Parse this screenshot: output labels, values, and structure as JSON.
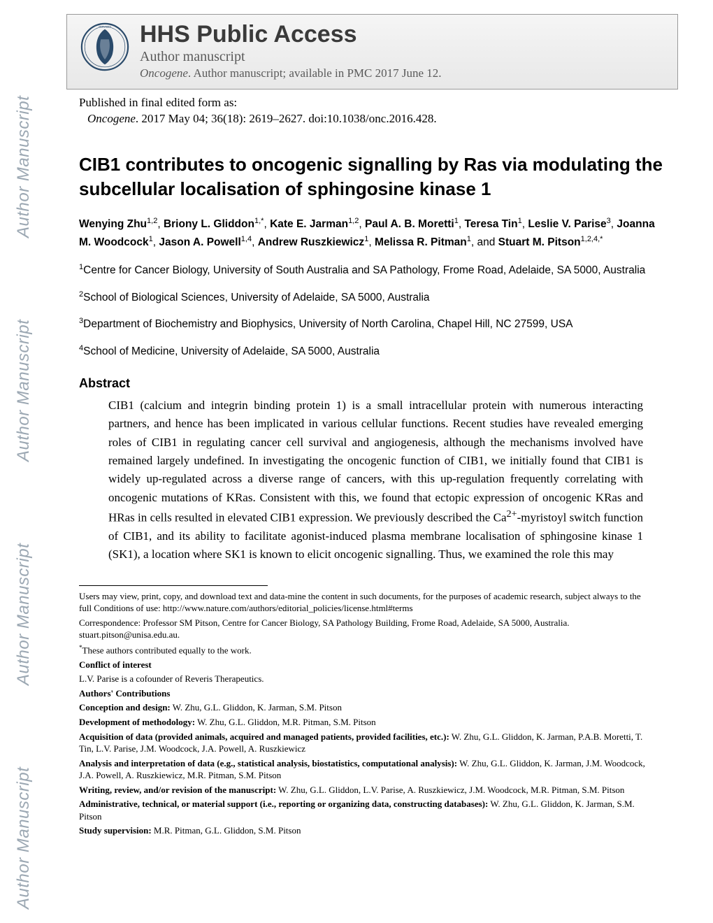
{
  "watermark": "Author Manuscript",
  "header": {
    "title": "HHS Public Access",
    "subtitle": "Author manuscript",
    "journal": "Oncogene",
    "journal_note": ". Author manuscript; available in PMC 2017 June 12."
  },
  "published": {
    "label": "Published in final edited form as:",
    "citation_journal": "Oncogene",
    "citation_rest": ". 2017 May 04; 36(18): 2619–2627. doi:10.1038/onc.2016.428."
  },
  "title": "CIB1 contributes to oncogenic signalling by Ras via modulating the subcellular localisation of sphingosine kinase 1",
  "authors_html": "Wenying Zhu|1,2|, Briony L. Gliddon|1,*|, Kate E. Jarman|1,2|, Paul A. B. Moretti|1|, Teresa Tin|1|, Leslie V. Parise|3|, Joanna M. Woodcock|1|, Jason A. Powell|1,4|, Andrew Ruszkiewicz|1|, Melissa R. Pitman|1|, and Stuart M. Pitson|1,2,4,*|",
  "affiliations": [
    {
      "num": "1",
      "text": "Centre for Cancer Biology, University of South Australia and SA Pathology, Frome Road, Adelaide, SA 5000, Australia"
    },
    {
      "num": "2",
      "text": "School of Biological Sciences, University of Adelaide, SA 5000, Australia"
    },
    {
      "num": "3",
      "text": "Department of Biochemistry and Biophysics, University of North Carolina, Chapel Hill, NC 27599, USA"
    },
    {
      "num": "4",
      "text": "School of Medicine, University of Adelaide, SA 5000, Australia"
    }
  ],
  "abstract": {
    "heading": "Abstract",
    "body": "CIB1 (calcium and integrin binding protein 1) is a small intracellular protein with numerous interacting partners, and hence has been implicated in various cellular functions. Recent studies have revealed emerging roles of CIB1 in regulating cancer cell survival and angiogenesis, although the mechanisms involved have remained largely undefined. In investigating the oncogenic function of CIB1, we initially found that CIB1 is widely up-regulated across a diverse range of cancers, with this up-regulation frequently correlating with oncogenic mutations of KRas. Consistent with this, we found that ectopic expression of oncogenic KRas and HRas in cells resulted in elevated CIB1 expression. We previously described the Ca2+-myristoyl switch function of CIB1, and its ability to facilitate agonist-induced plasma membrane localisation of sphingosine kinase 1 (SK1), a location where SK1 is known to elicit oncogenic signalling. Thus, we examined the role this may"
  },
  "footnotes": {
    "use": "Users may view, print, copy, and download text and data-mine the content in such documents, for the purposes of academic research, subject always to the full Conditions of use: http://www.nature.com/authors/editorial_policies/license.html#terms",
    "correspondence": "Correspondence: Professor SM Pitson, Centre for Cancer Biology, SA Pathology Building, Frome Road, Adelaide, SA 5000, Australia. stuart.pitson@unisa.edu.au.",
    "equal": "These authors contributed equally to the work.",
    "coi_head": "Conflict of interest",
    "coi": "L.V. Parise is a cofounder of Reveris Therapeutics.",
    "contrib_head": "Authors' Contributions",
    "contrib": [
      {
        "label": "Conception and design:",
        "names": " W. Zhu, G.L. Gliddon, K. Jarman, S.M. Pitson"
      },
      {
        "label": "Development of methodology:",
        "names": " W. Zhu, G.L. Gliddon, M.R. Pitman, S.M. Pitson"
      },
      {
        "label": "Acquisition of data (provided animals, acquired and managed patients, provided facilities, etc.):",
        "names": " W. Zhu, G.L. Gliddon, K. Jarman, P.A.B. Moretti, T. Tin, L.V. Parise, J.M. Woodcock, J.A. Powell, A. Ruszkiewicz"
      },
      {
        "label": "Analysis and interpretation of data (e.g., statistical analysis, biostatistics, computational analysis):",
        "names": " W. Zhu, G.L. Gliddon, K. Jarman, J.M. Woodcock, J.A. Powell, A. Ruszkiewicz, M.R. Pitman, S.M. Pitson"
      },
      {
        "label": "Writing, review, and/or revision of the manuscript:",
        "names": " W. Zhu, G.L. Gliddon, L.V. Parise, A. Ruszkiewicz, J.M. Woodcock, M.R. Pitman, S.M. Pitson"
      },
      {
        "label": "Administrative, technical, or material support (i.e., reporting or organizing data, constructing databases):",
        "names": " W. Zhu, G.L. Gliddon, K. Jarman, S.M. Pitson"
      },
      {
        "label": "Study supervision:",
        "names": " M.R. Pitman, G.L. Gliddon, S.M. Pitson"
      }
    ]
  },
  "colors": {
    "watermark": "#9ca8b3",
    "header_text": "#3a3a3a",
    "border": "#999999",
    "logo": "#2a4a6a"
  }
}
